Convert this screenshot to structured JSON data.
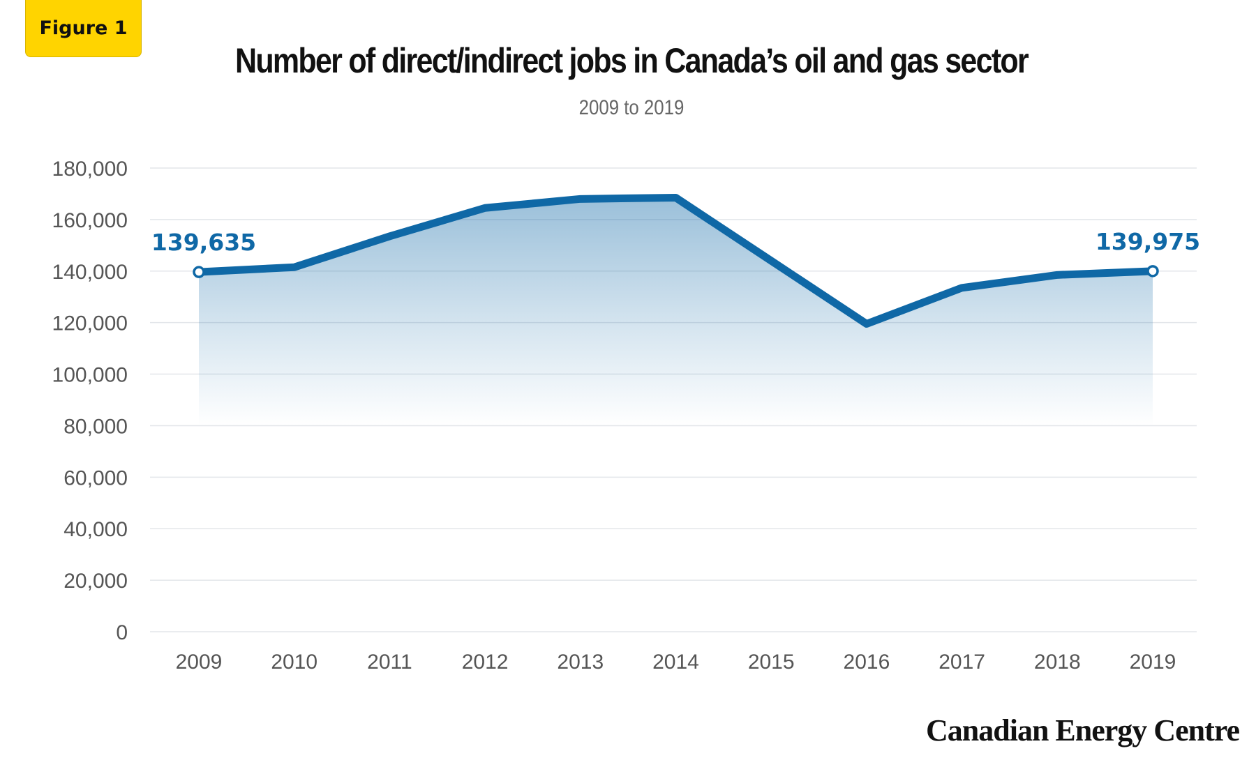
{
  "badge": "Figure 1",
  "brand": "Canadian Energy Centre",
  "colors": {
    "line": "#0F68A6",
    "badge": "#FFD400",
    "grid": "#e3e6ea",
    "tick": "#555555"
  },
  "chart_data": {
    "type": "area",
    "title": "Number of direct/indirect jobs in Canada’s oil and gas sector",
    "subtitle": "2009 to 2019",
    "xlabel": "",
    "ylabel": "",
    "ylim": [
      0,
      180000
    ],
    "grid": true,
    "x": [
      "2009",
      "2010",
      "2011",
      "2012",
      "2013",
      "2014",
      "2015",
      "2016",
      "2017",
      "2018",
      "2019"
    ],
    "y_ticks": [
      "0",
      "20,000",
      "40,000",
      "60,000",
      "80,000",
      "100,000",
      "120,000",
      "140,000",
      "160,000",
      "180,000"
    ],
    "series": [
      {
        "values": [
          139635,
          141500,
          153500,
          164500,
          168000,
          168500,
          144000,
          119500,
          133500,
          138500,
          139975
        ]
      }
    ],
    "annotations": [
      {
        "index": 0,
        "text": "139,635"
      },
      {
        "index": 10,
        "text": "139,975"
      }
    ]
  }
}
